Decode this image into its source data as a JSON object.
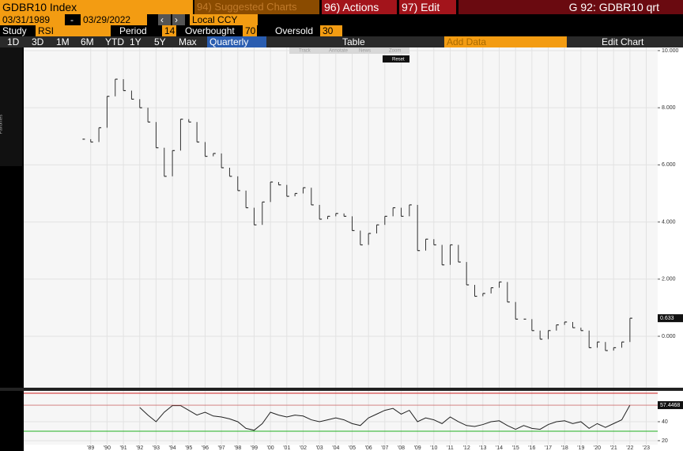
{
  "header": {
    "security": "GDBR10 Index",
    "suggested": "94) Suggested Charts",
    "actions": "96) Actions",
    "edit": "97) Edit",
    "page_title": "G 92: GDBR10 qrt",
    "start_date": "03/31/1989",
    "date_sep": "-",
    "end_date": "03/29/2022",
    "currency": "Local CCY"
  },
  "study": {
    "label": "Study",
    "name": "RSI",
    "period_label": "Period",
    "period": 14,
    "overbought_label": "Overbought",
    "overbought": 70,
    "oversold_label": "Oversold",
    "oversold": 30
  },
  "toolbar": {
    "ranges": [
      "1D",
      "3D",
      "1M",
      "6M",
      "YTD",
      "1Y",
      "5Y",
      "Max"
    ],
    "frequency": "Quarterly",
    "table": "Table",
    "add_data": "Add Data",
    "edit_chart": "Edit Chart",
    "favorites": "Favorites",
    "popup": [
      "Track",
      "Annotate",
      "News",
      "Zoom"
    ],
    "reset": "Reset"
  },
  "chart_data": [
    {
      "type": "price-bars",
      "color": "#333333",
      "grid": true,
      "x": [
        1988.5,
        1989.0,
        1989.5,
        1990.0,
        1990.5,
        1991.0,
        1991.5,
        1992.0,
        1992.5,
        1993.0,
        1993.5,
        1994.0,
        1994.5,
        1995.0,
        1995.5,
        1996.0,
        1996.5,
        1997.0,
        1997.5,
        1998.0,
        1998.5,
        1999.0,
        1999.5,
        2000.0,
        2000.5,
        2001.0,
        2001.5,
        2002.0,
        2002.5,
        2003.0,
        2003.5,
        2004.0,
        2004.5,
        2005.0,
        2005.5,
        2006.0,
        2006.5,
        2007.0,
        2007.5,
        2008.0,
        2008.5,
        2009.0,
        2009.5,
        2010.0,
        2010.5,
        2011.0,
        2011.5,
        2012.0,
        2012.5,
        2013.0,
        2013.5,
        2014.0,
        2014.5,
        2015.0,
        2015.5,
        2016.0,
        2016.5,
        2017.0,
        2017.5,
        2018.0,
        2018.5,
        2019.0,
        2019.5,
        2020.0,
        2020.5,
        2021.0,
        2021.5,
        2022.0
      ],
      "values": [
        6.9,
        6.8,
        7.3,
        8.4,
        9.0,
        8.6,
        8.3,
        8.0,
        7.5,
        6.6,
        5.6,
        6.5,
        7.6,
        7.5,
        6.8,
        6.3,
        6.4,
        5.9,
        5.6,
        5.1,
        4.5,
        3.9,
        4.7,
        5.4,
        5.3,
        4.9,
        5.0,
        5.2,
        4.6,
        4.1,
        4.2,
        4.3,
        4.2,
        3.7,
        3.2,
        3.6,
        3.9,
        4.2,
        4.5,
        4.2,
        4.6,
        3.0,
        3.4,
        3.2,
        2.5,
        3.2,
        2.6,
        1.8,
        1.4,
        1.5,
        1.7,
        1.9,
        1.2,
        0.6,
        0.6,
        0.2,
        -0.1,
        0.2,
        0.4,
        0.5,
        0.3,
        0.2,
        -0.4,
        -0.2,
        -0.5,
        -0.4,
        -0.2,
        0.633
      ],
      "xlim": [
        1984.9,
        2023.7
      ],
      "ylim": [
        -1.8,
        10.11
      ],
      "yticks": [
        {
          "value": 10,
          "label": "10.000"
        },
        {
          "value": 8,
          "label": "8.000"
        },
        {
          "value": 6,
          "label": "6.000"
        },
        {
          "value": 4,
          "label": "4.000"
        },
        {
          "value": 2,
          "label": "2.000"
        },
        {
          "value": 0,
          "label": "0.000"
        }
      ]
    },
    {
      "type": "line",
      "color": "#222222",
      "grid": true,
      "x": [
        1992.0,
        1992.5,
        1993.0,
        1993.5,
        1994.0,
        1994.5,
        1995.0,
        1995.5,
        1996.0,
        1996.5,
        1997.0,
        1997.5,
        1998.0,
        1998.5,
        1999.0,
        1999.5,
        2000.0,
        2000.5,
        2001.0,
        2001.5,
        2002.0,
        2002.5,
        2003.0,
        2003.5,
        2004.0,
        2004.5,
        2005.0,
        2005.5,
        2006.0,
        2006.5,
        2007.0,
        2007.5,
        2008.0,
        2008.5,
        2009.0,
        2009.5,
        2010.0,
        2010.5,
        2011.0,
        2011.5,
        2012.0,
        2012.5,
        2013.0,
        2013.5,
        2014.0,
        2014.5,
        2015.0,
        2015.5,
        2016.0,
        2016.5,
        2017.0,
        2017.5,
        2018.0,
        2018.5,
        2019.0,
        2019.5,
        2020.0,
        2020.5,
        2021.0,
        2021.5,
        2022.0
      ],
      "values": [
        55,
        47,
        40,
        50,
        57,
        57,
        52,
        47,
        50,
        46,
        45,
        43,
        40,
        33,
        31,
        38,
        50,
        47,
        45,
        47,
        46,
        42,
        40,
        42,
        44,
        42,
        38,
        36,
        44,
        48,
        52,
        54,
        48,
        52,
        40,
        44,
        42,
        38,
        45,
        40,
        36,
        35,
        37,
        40,
        41,
        36,
        32,
        36,
        33,
        32,
        37,
        40,
        41,
        38,
        40,
        33,
        38,
        34,
        38,
        42,
        57.4468
      ],
      "xlim": [
        1984.9,
        2023.7
      ],
      "ylim": [
        15.8,
        72.5
      ],
      "yticks": [
        40,
        20
      ],
      "xticks": [
        {
          "value": 1989,
          "label": "'89"
        },
        {
          "value": 1990,
          "label": "'90"
        },
        {
          "value": 1991,
          "label": "'91"
        },
        {
          "value": 1992,
          "label": "'92"
        },
        {
          "value": 1993,
          "label": "'93"
        },
        {
          "value": 1994,
          "label": "'94"
        },
        {
          "value": 1995,
          "label": "'95"
        },
        {
          "value": 1996,
          "label": "'96"
        },
        {
          "value": 1997,
          "label": "'97"
        },
        {
          "value": 1998,
          "label": "'98"
        },
        {
          "value": 1999,
          "label": "'99"
        },
        {
          "value": 2000,
          "label": "'00"
        },
        {
          "value": 2001,
          "label": "'01"
        },
        {
          "value": 2002,
          "label": "'02"
        },
        {
          "value": 2003,
          "label": "'03"
        },
        {
          "value": 2004,
          "label": "'04"
        },
        {
          "value": 2005,
          "label": "'05"
        },
        {
          "value": 2006,
          "label": "'06"
        },
        {
          "value": 2007,
          "label": "'07"
        },
        {
          "value": 2008,
          "label": "'08"
        },
        {
          "value": 2009,
          "label": "'09"
        },
        {
          "value": 2010,
          "label": "'10"
        },
        {
          "value": 2011,
          "label": "'11"
        },
        {
          "value": 2012,
          "label": "'12"
        },
        {
          "value": 2013,
          "label": "'13"
        },
        {
          "value": 2014,
          "label": "'14"
        },
        {
          "value": 2015,
          "label": "'15"
        },
        {
          "value": 2016,
          "label": "'16"
        },
        {
          "value": 2017,
          "label": "'17"
        },
        {
          "value": 2018,
          "label": "'18"
        },
        {
          "value": 2019,
          "label": "'19"
        },
        {
          "value": 2020,
          "label": "'20"
        },
        {
          "value": 2021,
          "label": "'21"
        },
        {
          "value": 2022,
          "label": "'22"
        },
        {
          "value": 2023,
          "label": "'23"
        }
      ]
    }
  ]
}
